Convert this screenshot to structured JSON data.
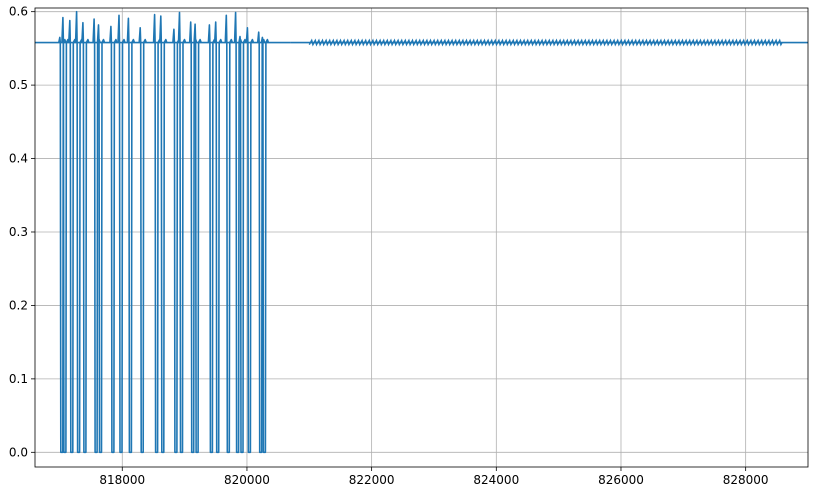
{
  "colors": {
    "series": "#1f77b4",
    "grid": "#b0b0b0",
    "axes": "#000000",
    "background": "#ffffff"
  },
  "chart_data": {
    "type": "line",
    "title": "",
    "xlabel": "",
    "ylabel": "",
    "xlim": [
      816600,
      829000
    ],
    "ylim": [
      -0.02,
      0.605
    ],
    "grid": true,
    "legend": "none",
    "x_ticks": [
      818000,
      820000,
      822000,
      824000,
      826000,
      828000
    ],
    "x_tick_labels": [
      "818000",
      "820000",
      "822000",
      "824000",
      "826000",
      "828000"
    ],
    "y_ticks": [
      0.0,
      0.1,
      0.2,
      0.3,
      0.4,
      0.5,
      0.6
    ],
    "y_tick_labels": [
      "0.0",
      "0.1",
      "0.2",
      "0.3",
      "0.4",
      "0.5",
      "0.6"
    ],
    "series": [
      {
        "baseline": 0.558,
        "dips": [
          {
            "x": 817030,
            "peak": 0.565
          },
          {
            "x": 817080,
            "peak": 0.592
          },
          {
            "x": 817190,
            "peak": 0.588
          },
          {
            "x": 817300,
            "peak": 0.6
          },
          {
            "x": 817400,
            "peak": 0.585
          },
          {
            "x": 817580,
            "peak": 0.59
          },
          {
            "x": 817650,
            "peak": 0.582
          },
          {
            "x": 817850,
            "peak": 0.58
          },
          {
            "x": 817980,
            "peak": 0.595
          },
          {
            "x": 818130,
            "peak": 0.591
          },
          {
            "x": 818320,
            "peak": 0.578
          },
          {
            "x": 818550,
            "peak": 0.596
          },
          {
            "x": 818650,
            "peak": 0.594
          },
          {
            "x": 818860,
            "peak": 0.576
          },
          {
            "x": 818950,
            "peak": 0.599
          },
          {
            "x": 819130,
            "peak": 0.586
          },
          {
            "x": 819200,
            "peak": 0.583
          },
          {
            "x": 819430,
            "peak": 0.582
          },
          {
            "x": 819530,
            "peak": 0.586
          },
          {
            "x": 819700,
            "peak": 0.595
          },
          {
            "x": 819850,
            "peak": 0.599
          },
          {
            "x": 819920,
            "peak": 0.566
          },
          {
            "x": 820040,
            "peak": 0.578
          },
          {
            "x": 820220,
            "peak": 0.572
          },
          {
            "x": 820280,
            "peak": 0.565
          }
        ],
        "flat_segments": [
          [
            816600,
            820700
          ],
          [
            820700,
            829000
          ]
        ],
        "noise_band": {
          "x_start": 821000,
          "x_end": 828600,
          "amplitude": 0.003
        }
      }
    ]
  }
}
